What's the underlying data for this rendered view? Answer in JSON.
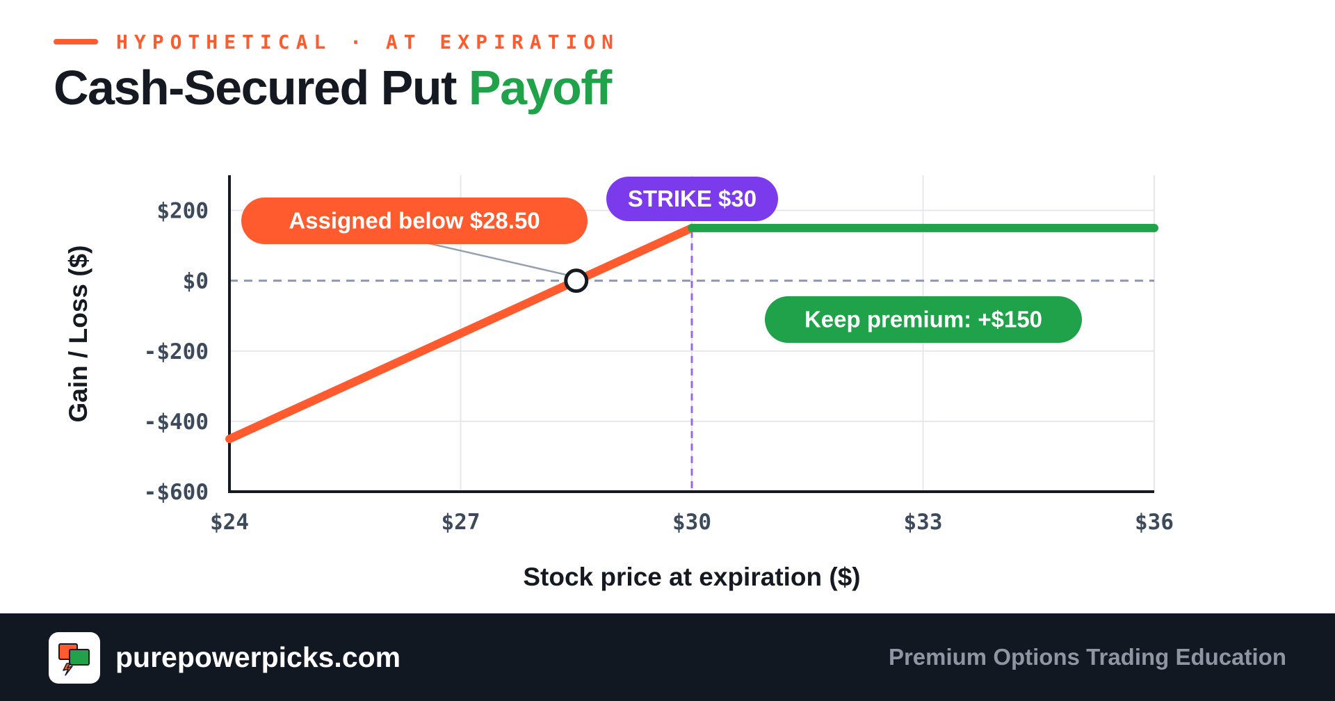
{
  "header": {
    "kicker": "HYPOTHETICAL · AT EXPIRATION",
    "title_main": "Cash-Secured Put",
    "title_accent": "Payoff"
  },
  "colors": {
    "loss_line": "#ff5b2e",
    "gain_line": "#1fa24a",
    "strike": "#7c3aed",
    "axis": "#151a22",
    "grid": "#e5e7eb",
    "zero_line": "#8f96b0",
    "tick_text": "#3d4a5c",
    "footer_bg": "#111821"
  },
  "chart_data": {
    "type": "line",
    "title": "Cash-Secured Put Payoff",
    "xlabel": "Stock price at expiration ($)",
    "ylabel": "Gain / Loss ($)",
    "xlim": [
      24,
      36
    ],
    "ylim": [
      -600,
      300
    ],
    "grid": true,
    "x_ticks": [
      24,
      27,
      30,
      33,
      36
    ],
    "x_tick_labels": [
      "$24",
      "$27",
      "$30",
      "$33",
      "$36"
    ],
    "y_ticks": [
      200,
      0,
      -200,
      -400,
      -600
    ],
    "y_tick_labels": [
      "$200",
      "$0",
      "-$200",
      "-$400",
      "-$600"
    ],
    "series": [
      {
        "role": "loss-segment",
        "color": "#ff5b2e",
        "points": [
          [
            24,
            -450
          ],
          [
            30,
            150
          ]
        ]
      },
      {
        "role": "premium-segment",
        "color": "#1fa24a",
        "points": [
          [
            30,
            150
          ],
          [
            36,
            150
          ]
        ]
      }
    ],
    "strike": {
      "x": 30,
      "label": "STRIKE $30"
    },
    "breakeven": {
      "x": 28.5,
      "y": 0
    },
    "annotations": {
      "assigned": "Assigned below $28.50",
      "premium": "Keep premium: +$150"
    }
  },
  "footer": {
    "site": "purepowerpicks.com",
    "tagline": "Premium Options Trading Education"
  }
}
